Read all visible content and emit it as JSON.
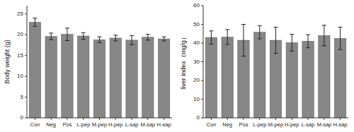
{
  "chart_data": [
    {
      "type": "bar",
      "categories": [
        "Con",
        "Neg",
        "Pos",
        "L-pep",
        "M-pep",
        "H-pep",
        "L-sap",
        "M-sap",
        "H-sap"
      ],
      "values": [
        23.0,
        19.6,
        20.1,
        19.7,
        18.8,
        19.2,
        18.7,
        19.4,
        19.0
      ],
      "errors": [
        1.0,
        0.8,
        1.5,
        0.8,
        0.7,
        0.7,
        1.1,
        0.7,
        0.5
      ],
      "ylabel": "Body weight (g)",
      "ylim": [
        0,
        27
      ],
      "yticks": [
        0,
        5,
        10,
        15,
        20,
        25
      ],
      "color": "#878787",
      "grid": false
    },
    {
      "type": "bar",
      "categories": [
        "Con",
        "Neg",
        "Pos",
        "L-pep",
        "M-pep",
        "H-pep",
        "L-sap",
        "M-sap",
        "H-sap"
      ],
      "values": [
        43.0,
        43.2,
        41.5,
        45.8,
        41.5,
        40.2,
        41.0,
        44.0,
        42.5
      ],
      "errors": [
        3.5,
        4.0,
        8.5,
        3.5,
        7.0,
        4.5,
        3.5,
        5.5,
        6.0
      ],
      "ylabel": "liver index（mg/g）",
      "ylim": [
        0,
        60
      ],
      "yticks": [
        0,
        10,
        20,
        30,
        40,
        50,
        60
      ],
      "color": "#878787",
      "grid": false
    }
  ]
}
